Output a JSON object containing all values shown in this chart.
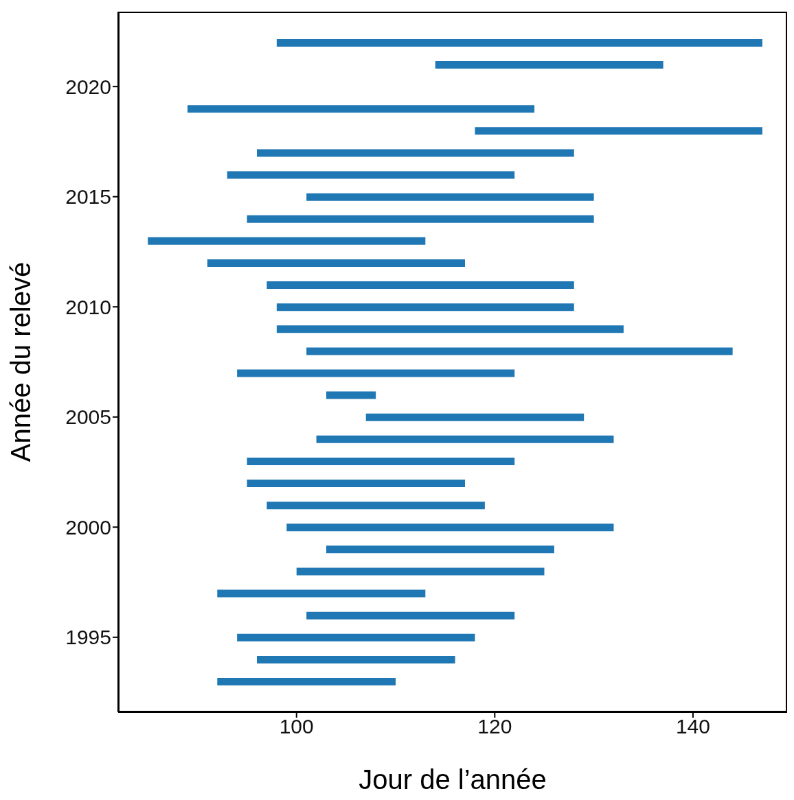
{
  "chart_data": {
    "type": "bar",
    "orientation": "horizontal",
    "xlabel": "Jour de l’année",
    "ylabel": "Année du relevé",
    "x": [
      2022,
      2021,
      2019,
      2018,
      2017,
      2016,
      2015,
      2014,
      2013,
      2012,
      2011,
      2010,
      2009,
      2008,
      2007,
      2006,
      2005,
      2004,
      2003,
      2002,
      2001,
      2000,
      1999,
      1998,
      1997,
      1996,
      1995,
      1994,
      1993
    ],
    "base": [
      98,
      114,
      89,
      118,
      96,
      93,
      101,
      95,
      85,
      91,
      97,
      98,
      98,
      101,
      94,
      103,
      107,
      102,
      95,
      95,
      97,
      99,
      103,
      100,
      92,
      101,
      94,
      96,
      92
    ],
    "values": [
      49,
      23,
      35,
      29,
      32,
      29,
      29,
      35,
      28,
      26,
      31,
      30,
      35,
      43,
      28,
      5,
      22,
      30,
      27,
      22,
      22,
      33,
      23,
      25,
      21,
      21,
      24,
      20,
      18
    ],
    "color": "#1f77b4",
    "xlim": [
      82,
      149.5
    ],
    "xticks": [
      100,
      120,
      140
    ],
    "ylim": [
      1991.6,
      2023.4
    ],
    "yticks": [
      1995,
      2000,
      2005,
      2010,
      2015,
      2020
    ]
  }
}
